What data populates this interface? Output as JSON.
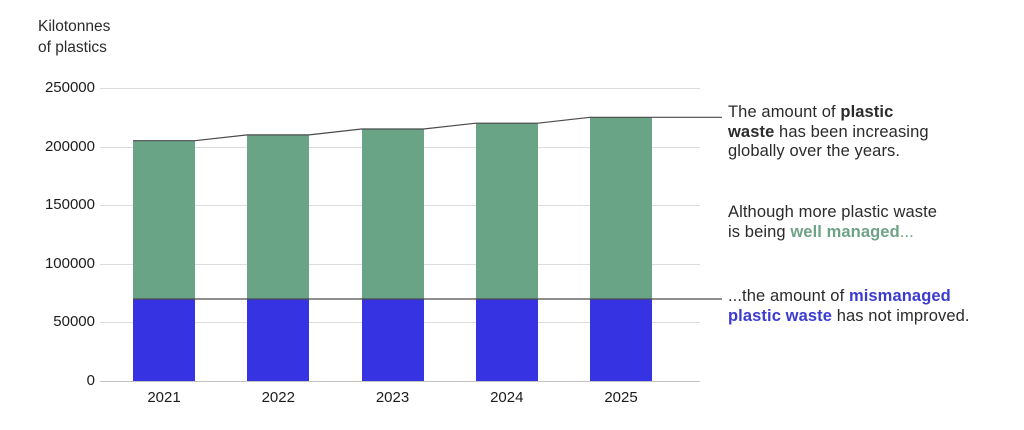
{
  "title": {
    "line1": "Kilotonnes",
    "line2": "of plastics"
  },
  "colors": {
    "well_managed": "#69a486",
    "mismanaged": "#3533e2",
    "green_text": "#6fa287",
    "blue_text": "#3b3bd1",
    "text_dark": "#2b2b2b",
    "gridline": "#dcdcdc",
    "overlay_line": "#4a4a4a"
  },
  "chart_data": {
    "type": "bar",
    "stacked": true,
    "categories": [
      "2021",
      "2022",
      "2023",
      "2024",
      "2025"
    ],
    "series": [
      {
        "name": "mismanaged plastic waste",
        "color_key": "mismanaged",
        "values": [
          70000,
          70000,
          70000,
          70000,
          70000
        ]
      },
      {
        "name": "well managed plastic waste",
        "color_key": "well_managed",
        "values": [
          135000,
          140000,
          145000,
          150000,
          155000
        ]
      }
    ],
    "totals": [
      205000,
      210000,
      215000,
      220000,
      225000
    ],
    "ylabel": "Kilotonnes of plastics",
    "yticks": [
      0,
      50000,
      100000,
      150000,
      200000,
      250000
    ],
    "ylim": [
      0,
      250000
    ],
    "grid": true,
    "legend": "none",
    "overlay_lines": [
      {
        "name": "total-line",
        "follows": "totals"
      },
      {
        "name": "mismanaged-line",
        "follows": "mismanaged"
      }
    ]
  },
  "annotations": [
    {
      "id": "plastic-waste",
      "lines": [
        {
          "segments": [
            {
              "text": "The amount of "
            },
            {
              "text": "plastic",
              "bold": true
            }
          ]
        },
        {
          "segments": [
            {
              "text": "waste",
              "bold": true
            },
            {
              "text": " has been increasing"
            }
          ]
        },
        {
          "segments": [
            {
              "text": "globally over the years."
            }
          ]
        }
      ]
    },
    {
      "id": "well-managed",
      "lines": [
        {
          "segments": [
            {
              "text": "Although more plastic waste"
            }
          ]
        },
        {
          "segments": [
            {
              "text": "is being "
            },
            {
              "text": "well managed",
              "bold": true,
              "color": "green_text"
            },
            {
              "text": "...",
              "color": "green_text"
            }
          ]
        }
      ]
    },
    {
      "id": "mismanaged",
      "lines": [
        {
          "segments": [
            {
              "text": "...the amount of "
            },
            {
              "text": "mismanaged",
              "bold": true,
              "color": "blue_text"
            }
          ]
        },
        {
          "segments": [
            {
              "text": "plastic waste",
              "bold": true,
              "color": "blue_text"
            },
            {
              "text": " has not improved."
            }
          ]
        }
      ]
    }
  ]
}
